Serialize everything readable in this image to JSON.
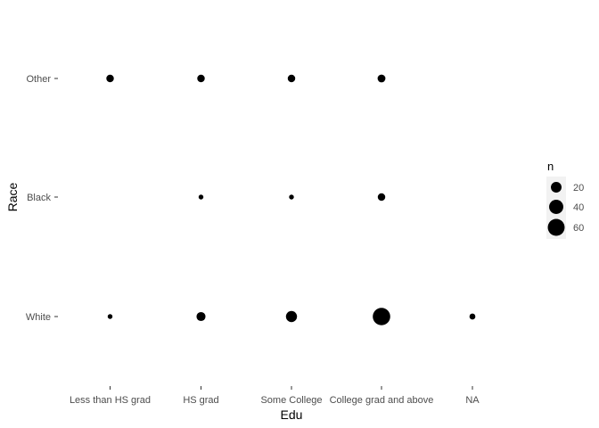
{
  "chart_data": {
    "type": "scatter",
    "title": "",
    "xlabel": "Edu",
    "ylabel": "Race",
    "x_categories": [
      "Less than HS grad",
      "HS grad",
      "Some College",
      "College grad and above",
      "NA"
    ],
    "y_categories": [
      "White",
      "Black",
      "Other"
    ],
    "size_variable": "n",
    "points": [
      {
        "x": "Less than HS grad",
        "y": "Other",
        "n": 8
      },
      {
        "x": "HS grad",
        "y": "Other",
        "n": 8
      },
      {
        "x": "Some College",
        "y": "Other",
        "n": 8
      },
      {
        "x": "College grad and above",
        "y": "Other",
        "n": 9
      },
      {
        "x": "HS grad",
        "y": "Black",
        "n": 2
      },
      {
        "x": "Some College",
        "y": "Black",
        "n": 2
      },
      {
        "x": "College grad and above",
        "y": "Black",
        "n": 8
      },
      {
        "x": "Less than HS grad",
        "y": "White",
        "n": 2
      },
      {
        "x": "HS grad",
        "y": "White",
        "n": 13
      },
      {
        "x": "Some College",
        "y": "White",
        "n": 22
      },
      {
        "x": "College grad and above",
        "y": "White",
        "n": 65
      },
      {
        "x": "NA",
        "y": "White",
        "n": 4
      }
    ],
    "legend": {
      "title": "n",
      "values": [
        20,
        40,
        60
      ],
      "position": "right"
    },
    "grid": false,
    "point_color": "#000000"
  }
}
